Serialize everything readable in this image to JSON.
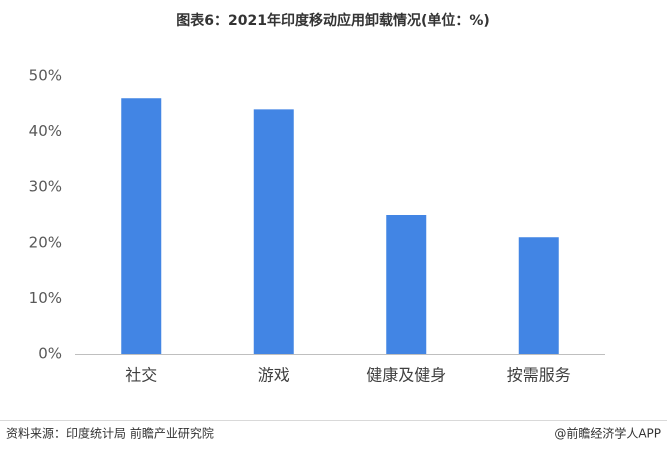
{
  "chart_data": {
    "type": "bar",
    "title": "图表6：2021年印度移动应用卸载情况(单位：%)",
    "categories": [
      "社交",
      "游戏",
      "健康及健身",
      "按需服务"
    ],
    "values": [
      46,
      44,
      25,
      21
    ],
    "color": "#4285e4",
    "ylim": [
      0,
      50
    ],
    "yticks": [
      {
        "value": 0,
        "label": "0%"
      },
      {
        "value": 10,
        "label": "10%"
      },
      {
        "value": 20,
        "label": "20%"
      },
      {
        "value": 30,
        "label": "30%"
      },
      {
        "value": 40,
        "label": "40%"
      },
      {
        "value": 50,
        "label": "50%"
      }
    ],
    "grid": false,
    "source": "资料来源：印度统计局 前瞻产业研究院",
    "credit": "@前瞻经济学人APP"
  }
}
